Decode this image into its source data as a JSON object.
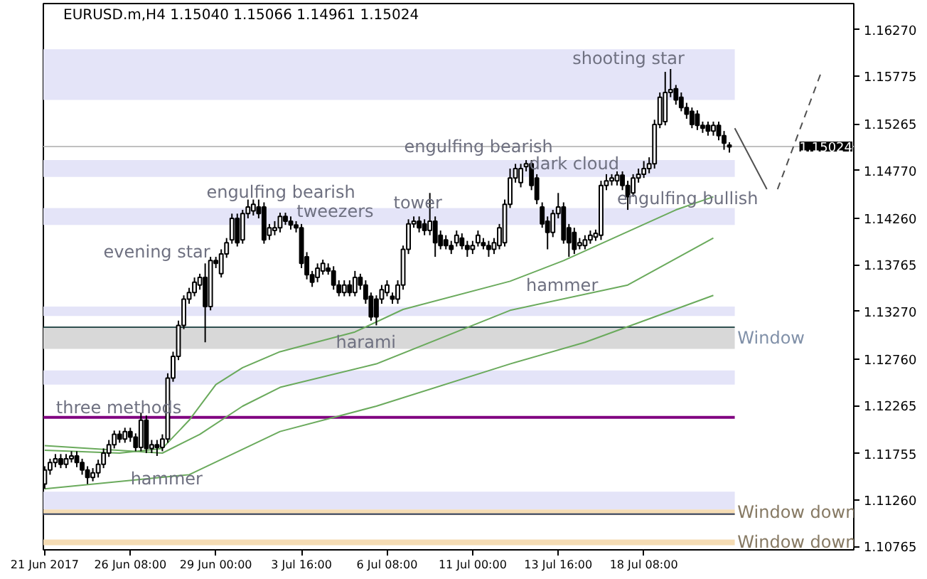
{
  "chart_data": {
    "type": "candlestick",
    "title": "EURUSD.m,H4  1.15040 1.15066 1.14961 1.15024",
    "categories": [
      "21 Jun 2017",
      null,
      null,
      null,
      null,
      null,
      null,
      null,
      null,
      null,
      null,
      null,
      null,
      null,
      null,
      null,
      "26 Jun 08:00",
      null,
      null,
      null,
      null,
      null,
      null,
      null,
      null,
      null,
      null,
      null,
      null,
      null,
      null,
      null,
      "29 Jun 00:00",
      null,
      null,
      null,
      null,
      null,
      null,
      null,
      null,
      null,
      null,
      null,
      null,
      null,
      null,
      null,
      "3 Jul 16:00",
      null,
      null,
      null,
      null,
      null,
      null,
      null,
      null,
      null,
      null,
      null,
      null,
      null,
      null,
      null,
      "6 Jul 08:00",
      null,
      null,
      null,
      null,
      null,
      null,
      null,
      null,
      null,
      null,
      null,
      null,
      null,
      null,
      null,
      "11 Jul 00:00",
      null,
      null,
      null,
      null,
      null,
      null,
      null,
      null,
      null,
      null,
      null,
      null,
      null,
      null,
      null,
      "13 Jul 16:00",
      null,
      null,
      null,
      null,
      null,
      null,
      null,
      null,
      null,
      null,
      null,
      null,
      null,
      null,
      null,
      "18 Jul 08:00",
      null,
      null,
      null,
      null,
      null,
      null,
      null,
      null,
      null,
      null,
      null,
      null,
      null,
      null,
      null,
      null,
      null,
      null,
      null,
      null,
      null,
      null,
      null,
      null,
      null,
      null,
      null,
      null,
      null,
      null,
      null,
      null,
      null,
      null,
      null,
      null,
      null,
      null,
      null
    ],
    "ohlc": [
      [
        1.1143,
        1.1162,
        1.1138,
        1.1158
      ],
      [
        1.1158,
        1.117,
        1.1153,
        1.1166
      ],
      [
        1.1166,
        1.1175,
        1.1161,
        1.117
      ],
      [
        1.117,
        1.1175,
        1.116,
        1.1164
      ],
      [
        1.1164,
        1.1175,
        1.116,
        1.117
      ],
      [
        1.117,
        1.1178,
        1.1166,
        1.1173
      ],
      [
        1.1173,
        1.1178,
        1.1161,
        1.1166
      ],
      [
        1.1166,
        1.117,
        1.1153,
        1.1158
      ],
      [
        1.1158,
        1.1162,
        1.1143,
        1.115
      ],
      [
        1.115,
        1.116,
        1.1146,
        1.1155
      ],
      [
        1.1155,
        1.1169,
        1.115,
        1.1164
      ],
      [
        1.1164,
        1.1181,
        1.116,
        1.1176
      ],
      [
        1.1176,
        1.119,
        1.1172,
        1.1185
      ],
      [
        1.1185,
        1.12,
        1.1181,
        1.1196
      ],
      [
        1.1196,
        1.12,
        1.1187,
        1.1191
      ],
      [
        1.1191,
        1.1203,
        1.1187,
        1.1199
      ],
      [
        1.1199,
        1.1203,
        1.1188,
        1.1193
      ],
      [
        1.1193,
        1.1197,
        1.1178,
        1.1182
      ],
      [
        1.1182,
        1.1219,
        1.1178,
        1.1211
      ],
      [
        1.1211,
        1.1216,
        1.1176,
        1.1181
      ],
      [
        1.1181,
        1.119,
        1.1176,
        1.1185
      ],
      [
        1.1185,
        1.119,
        1.1173,
        1.1182
      ],
      [
        1.1182,
        1.1196,
        1.1178,
        1.1191
      ],
      [
        1.1191,
        1.1261,
        1.1187,
        1.1256
      ],
      [
        1.1256,
        1.1284,
        1.1252,
        1.1279
      ],
      [
        1.1279,
        1.1317,
        1.1275,
        1.1312
      ],
      [
        1.1312,
        1.1344,
        1.1308,
        1.134
      ],
      [
        1.134,
        1.1352,
        1.1335,
        1.1347
      ],
      [
        1.1347,
        1.1363,
        1.1343,
        1.1358
      ],
      [
        1.1355,
        1.1367,
        1.135,
        1.1363
      ],
      [
        1.1363,
        1.1378,
        1.1294,
        1.1332
      ],
      [
        1.1332,
        1.1385,
        1.1328,
        1.1381
      ],
      [
        1.1381,
        1.1385,
        1.1373,
        1.1378
      ],
      [
        1.1367,
        1.1393,
        1.1363,
        1.1388
      ],
      [
        1.1388,
        1.1405,
        1.1384,
        1.14
      ],
      [
        1.1403,
        1.1431,
        1.1399,
        1.1426
      ],
      [
        1.1426,
        1.1431,
        1.1396,
        1.14
      ],
      [
        1.1403,
        1.1435,
        1.1399,
        1.1431
      ],
      [
        1.1431,
        1.1446,
        1.1426,
        1.1438
      ],
      [
        1.1434,
        1.1446,
        1.1429,
        1.1441
      ],
      [
        1.1438,
        1.1446,
        1.1426,
        1.1431
      ],
      [
        1.1438,
        1.1443,
        1.1399,
        1.1403
      ],
      [
        1.1408,
        1.142,
        1.1403,
        1.1416
      ],
      [
        1.1413,
        1.1423,
        1.1408,
        1.1416
      ],
      [
        1.1416,
        1.1432,
        1.1411,
        1.1428
      ],
      [
        1.1428,
        1.1432,
        1.1419,
        1.1423
      ],
      [
        1.1423,
        1.1428,
        1.1414,
        1.1419
      ],
      [
        1.1419,
        1.1423,
        1.1411,
        1.1416
      ],
      [
        1.1416,
        1.142,
        1.1373,
        1.1378
      ],
      [
        1.1385,
        1.139,
        1.1361,
        1.1366
      ],
      [
        1.1366,
        1.137,
        1.1353,
        1.1358
      ],
      [
        1.1363,
        1.1378,
        1.1358,
        1.1373
      ],
      [
        1.137,
        1.1382,
        1.1366,
        1.1378
      ],
      [
        1.1373,
        1.1378,
        1.1366,
        1.137
      ],
      [
        1.137,
        1.1375,
        1.135,
        1.1355
      ],
      [
        1.1355,
        1.136,
        1.1343,
        1.1347
      ],
      [
        1.1347,
        1.136,
        1.1343,
        1.1355
      ],
      [
        1.1355,
        1.136,
        1.1343,
        1.1347
      ],
      [
        1.1347,
        1.137,
        1.1343,
        1.1363
      ],
      [
        1.1363,
        1.1367,
        1.135,
        1.1355
      ],
      [
        1.1355,
        1.136,
        1.1335,
        1.134
      ],
      [
        1.1343,
        1.1347,
        1.1317,
        1.1321
      ],
      [
        1.134,
        1.1344,
        1.1312,
        1.1321
      ],
      [
        1.134,
        1.1355,
        1.1335,
        1.135
      ],
      [
        1.1347,
        1.136,
        1.1343,
        1.1355
      ],
      [
        1.1343,
        1.1347,
        1.1335,
        1.134
      ],
      [
        1.134,
        1.136,
        1.1335,
        1.1355
      ],
      [
        1.1355,
        1.1397,
        1.135,
        1.1393
      ],
      [
        1.1393,
        1.1425,
        1.1388,
        1.142
      ],
      [
        1.142,
        1.1428,
        1.1416,
        1.1423
      ],
      [
        1.1423,
        1.1428,
        1.1411,
        1.1416
      ],
      [
        1.142,
        1.1425,
        1.1408,
        1.1413
      ],
      [
        1.1413,
        1.1453,
        1.1408,
        1.1423
      ],
      [
        1.1423,
        1.1428,
        1.1385,
        1.14
      ],
      [
        1.1408,
        1.1413,
        1.1393,
        1.1397
      ],
      [
        1.1403,
        1.1408,
        1.1393,
        1.1397
      ],
      [
        1.1397,
        1.1402,
        1.1388,
        1.1393
      ],
      [
        1.14,
        1.1413,
        1.1396,
        1.1408
      ],
      [
        1.1405,
        1.141,
        1.1393,
        1.1397
      ],
      [
        1.1397,
        1.1402,
        1.1385,
        1.1393
      ],
      [
        1.1393,
        1.1402,
        1.1388,
        1.1397
      ],
      [
        1.14,
        1.1413,
        1.1396,
        1.1408
      ],
      [
        1.14,
        1.1405,
        1.1393,
        1.1397
      ],
      [
        1.1397,
        1.1402,
        1.1385,
        1.1393
      ],
      [
        1.1393,
        1.1405,
        1.1388,
        1.14
      ],
      [
        1.1397,
        1.142,
        1.1393,
        1.1416
      ],
      [
        1.14,
        1.1446,
        1.1396,
        1.1441
      ],
      [
        1.1441,
        1.1479,
        1.1437,
        1.1469
      ],
      [
        1.1469,
        1.1484,
        1.1464,
        1.1479
      ],
      [
        1.1464,
        1.1484,
        1.1459,
        1.1479
      ],
      [
        1.1481,
        1.1488,
        1.1476,
        1.1484
      ],
      [
        1.1484,
        1.1488,
        1.1456,
        1.1461
      ],
      [
        1.1469,
        1.1473,
        1.1441,
        1.1446
      ],
      [
        1.1438,
        1.1443,
        1.1416,
        1.142
      ],
      [
        1.1423,
        1.1428,
        1.1393,
        1.1411
      ],
      [
        1.1411,
        1.1435,
        1.1406,
        1.1431
      ],
      [
        1.1431,
        1.1453,
        1.1426,
        1.1438
      ],
      [
        1.1438,
        1.1443,
        1.1399,
        1.1403
      ],
      [
        1.1416,
        1.142,
        1.1385,
        1.14
      ],
      [
        1.1411,
        1.1416,
        1.1388,
        1.1393
      ],
      [
        1.1397,
        1.1405,
        1.1393,
        1.14
      ],
      [
        1.1397,
        1.1408,
        1.1393,
        1.1403
      ],
      [
        1.1403,
        1.1413,
        1.1399,
        1.1408
      ],
      [
        1.1406,
        1.1414,
        1.1402,
        1.141
      ],
      [
        1.1408,
        1.1466,
        1.1403,
        1.1461
      ],
      [
        1.1461,
        1.1473,
        1.1456,
        1.1466
      ],
      [
        1.1466,
        1.1473,
        1.1461,
        1.1469
      ],
      [
        1.1466,
        1.1476,
        1.1461,
        1.1472
      ],
      [
        1.1472,
        1.1476,
        1.1456,
        1.1461
      ],
      [
        1.1461,
        1.1466,
        1.1435,
        1.1449
      ],
      [
        1.1453,
        1.1473,
        1.1449,
        1.1469
      ],
      [
        1.1469,
        1.1479,
        1.1464,
        1.1473
      ],
      [
        1.1473,
        1.1487,
        1.1469,
        1.1479
      ],
      [
        1.1479,
        1.1491,
        1.1474,
        1.1484
      ],
      [
        1.1484,
        1.1531,
        1.1479,
        1.1526
      ],
      [
        1.1526,
        1.156,
        1.1522,
        1.1555
      ],
      [
        1.1529,
        1.1582,
        1.1525,
        1.156
      ],
      [
        1.156,
        1.1585,
        1.1555,
        1.1563
      ],
      [
        1.1564,
        1.1568,
        1.1547,
        1.1552
      ],
      [
        1.1555,
        1.156,
        1.154,
        1.1544
      ],
      [
        1.1544,
        1.1549,
        1.1532,
        1.1537
      ],
      [
        1.154,
        1.1544,
        1.1522,
        1.1526
      ],
      [
        1.1537,
        1.1541,
        1.152,
        1.1525
      ],
      [
        1.1525,
        1.1529,
        1.1517,
        1.1522
      ],
      [
        1.1525,
        1.1529,
        1.1514,
        1.1519
      ],
      [
        1.1519,
        1.1529,
        1.1514,
        1.1525
      ],
      [
        1.1525,
        1.1529,
        1.1509,
        1.1514
      ],
      [
        1.1514,
        1.1519,
        1.1499,
        1.1506
      ],
      [
        1.1504,
        1.1507,
        1.1496,
        1.1502
      ],
      null,
      null,
      null,
      null,
      null,
      null,
      null,
      null,
      null,
      null,
      null,
      null,
      null,
      null,
      null,
      null,
      null,
      null,
      null,
      null,
      null,
      null,
      null
    ],
    "series": [
      {
        "type": "line",
        "color": "#6aaa5c",
        "values": [
          1.1179,
          null,
          null,
          null,
          null,
          null,
          null,
          null,
          null,
          null,
          null,
          null,
          null,
          null,
          1.1176,
          null,
          null,
          null,
          null,
          null,
          null,
          null,
          1.1181,
          null,
          null,
          null,
          null,
          1.1211,
          null,
          null,
          null,
          null,
          1.1249,
          null,
          null,
          null,
          null,
          1.1267,
          null,
          null,
          null,
          null,
          null,
          null,
          1.1284,
          null,
          null,
          null,
          null,
          null,
          null,
          null,
          null,
          null,
          null,
          null,
          null,
          null,
          1.1305,
          null,
          null,
          null,
          null,
          null,
          null,
          null,
          null,
          1.1329,
          null,
          null,
          null,
          null,
          null,
          null,
          null,
          null,
          null,
          null,
          null,
          null,
          null,
          null,
          null,
          null,
          null,
          null,
          null,
          1.1359,
          null,
          null,
          null,
          null,
          null,
          null,
          null,
          null,
          null,
          1.1381,
          null,
          null,
          null,
          null,
          null,
          null,
          null,
          null,
          null,
          null,
          null,
          null,
          null,
          null,
          null,
          null,
          null,
          null,
          null,
          null,
          1.1435,
          null,
          null,
          null,
          null,
          null,
          null,
          1.1449,
          null,
          null,
          null,
          null,
          null,
          null,
          null,
          null,
          null,
          null,
          null,
          null,
          null,
          null,
          null,
          null,
          null,
          null,
          null,
          null,
          null,
          null,
          null,
          null,
          null,
          null
        ]
      },
      {
        "type": "line",
        "color": "#6aaa5c",
        "values": [
          1.1184,
          null,
          null,
          null,
          null,
          null,
          null,
          null,
          null,
          null,
          null,
          null,
          null,
          null,
          null,
          null,
          null,
          null,
          null,
          null,
          null,
          null,
          1.1176,
          null,
          null,
          null,
          null,
          null,
          null,
          1.1196,
          null,
          null,
          null,
          null,
          null,
          null,
          null,
          1.1226,
          null,
          null,
          null,
          null,
          null,
          null,
          1.1246,
          null,
          null,
          null,
          null,
          null,
          null,
          null,
          null,
          null,
          null,
          null,
          null,
          null,
          null,
          null,
          null,
          null,
          1.1271,
          null,
          null,
          null,
          null,
          null,
          null,
          null,
          null,
          null,
          null,
          null,
          null,
          null,
          null,
          null,
          null,
          null,
          null,
          null,
          null,
          null,
          null,
          null,
          null,
          1.1328,
          null,
          null,
          null,
          null,
          null,
          null,
          null,
          null,
          null,
          null,
          null,
          null,
          null,
          null,
          null,
          null,
          null,
          null,
          null,
          null,
          null,
          1.1355,
          null,
          null,
          null,
          null,
          null,
          null,
          null,
          null,
          null,
          null,
          null,
          null,
          null,
          null,
          null,
          1.1405,
          null,
          null,
          null,
          null,
          null,
          null,
          null,
          null,
          null,
          null,
          null,
          null,
          null,
          null,
          null,
          null,
          null,
          null,
          null,
          null,
          null,
          null,
          null,
          null,
          null,
          null
        ]
      },
      {
        "type": "line",
        "color": "#6aaa5c",
        "values": [
          1.1138,
          null,
          null,
          null,
          null,
          null,
          null,
          null,
          null,
          null,
          null,
          null,
          null,
          null,
          null,
          null,
          null,
          null,
          null,
          null,
          null,
          null,
          null,
          null,
          null,
          null,
          null,
          1.1153,
          null,
          null,
          null,
          null,
          null,
          null,
          null,
          null,
          null,
          null,
          null,
          null,
          null,
          null,
          null,
          null,
          1.1199,
          null,
          null,
          null,
          null,
          null,
          null,
          null,
          null,
          null,
          null,
          null,
          null,
          null,
          null,
          null,
          null,
          null,
          1.1226,
          null,
          null,
          null,
          null,
          null,
          null,
          null,
          null,
          null,
          null,
          null,
          null,
          null,
          null,
          null,
          null,
          null,
          null,
          null,
          null,
          null,
          null,
          null,
          null,
          1.1271,
          null,
          null,
          null,
          null,
          null,
          null,
          null,
          null,
          null,
          null,
          null,
          null,
          null,
          1.1294,
          null,
          null,
          null,
          null,
          null,
          null,
          null,
          null,
          null,
          null,
          null,
          null,
          null,
          null,
          null,
          null,
          null,
          null,
          null,
          null,
          null,
          null,
          null,
          1.1344,
          null,
          null,
          null,
          null,
          null,
          null,
          null,
          null,
          null,
          null,
          null,
          null,
          null,
          null,
          null,
          null,
          null,
          null,
          null,
          null,
          null,
          null,
          null,
          null,
          null,
          null
        ]
      },
      {
        "type": "line",
        "color": "#505050",
        "line_style": "solid",
        "values": [
          null,
          null,
          null,
          null,
          null,
          null,
          null,
          null,
          null,
          null,
          null,
          null,
          null,
          null,
          null,
          null,
          null,
          null,
          null,
          null,
          null,
          null,
          null,
          null,
          null,
          null,
          null,
          null,
          null,
          null,
          null,
          null,
          null,
          null,
          null,
          null,
          null,
          null,
          null,
          null,
          null,
          null,
          null,
          null,
          null,
          null,
          null,
          null,
          null,
          null,
          null,
          null,
          null,
          null,
          null,
          null,
          null,
          null,
          null,
          null,
          null,
          null,
          null,
          null,
          null,
          null,
          null,
          null,
          null,
          null,
          null,
          null,
          null,
          null,
          null,
          null,
          null,
          null,
          null,
          null,
          null,
          null,
          null,
          null,
          null,
          null,
          null,
          null,
          null,
          null,
          null,
          null,
          null,
          null,
          null,
          null,
          null,
          null,
          null,
          null,
          null,
          null,
          null,
          null,
          null,
          null,
          null,
          null,
          null,
          null,
          null,
          null,
          null,
          null,
          null,
          null,
          null,
          null,
          null,
          null,
          null,
          null,
          null,
          null,
          null,
          null,
          null,
          null,
          null,
          1.1522,
          null,
          null,
          null,
          null,
          null,
          1.1457,
          null,
          null,
          null,
          null,
          null,
          null,
          null,
          null,
          null,
          null,
          null,
          null,
          null,
          null,
          null,
          null
        ]
      },
      {
        "type": "line",
        "color": "#505050",
        "line_style": "dashed",
        "values": [
          null,
          null,
          null,
          null,
          null,
          null,
          null,
          null,
          null,
          null,
          null,
          null,
          null,
          null,
          null,
          null,
          null,
          null,
          null,
          null,
          null,
          null,
          null,
          null,
          null,
          null,
          null,
          null,
          null,
          null,
          null,
          null,
          null,
          null,
          null,
          null,
          null,
          null,
          null,
          null,
          null,
          null,
          null,
          null,
          null,
          null,
          null,
          null,
          null,
          null,
          null,
          null,
          null,
          null,
          null,
          null,
          null,
          null,
          null,
          null,
          null,
          null,
          null,
          null,
          null,
          null,
          null,
          null,
          null,
          null,
          null,
          null,
          null,
          null,
          null,
          null,
          null,
          null,
          null,
          null,
          null,
          null,
          null,
          null,
          null,
          null,
          null,
          null,
          null,
          null,
          null,
          null,
          null,
          null,
          null,
          null,
          null,
          null,
          null,
          null,
          null,
          null,
          null,
          null,
          null,
          null,
          null,
          null,
          null,
          null,
          null,
          null,
          null,
          null,
          null,
          null,
          null,
          null,
          null,
          null,
          null,
          null,
          null,
          null,
          null,
          null,
          null,
          null,
          null,
          null,
          null,
          null,
          null,
          null,
          null,
          null,
          null,
          1.1457,
          null,
          null,
          null,
          null,
          null,
          null,
          null,
          1.1579,
          null,
          null,
          null,
          null,
          null,
          null
        ]
      }
    ],
    "ylim": [
      1.1073,
      1.16547
    ],
    "yticks": [
      {
        "value": 1.1627,
        "label": "1.16270"
      },
      {
        "value": 1.15775,
        "label": "1.15775"
      },
      {
        "value": 1.15265,
        "label": "1.15265"
      },
      {
        "value": 1.1477,
        "label": "1.14770"
      },
      {
        "value": 1.1426,
        "label": "1.14260"
      },
      {
        "value": 1.13765,
        "label": "1.13765"
      },
      {
        "value": 1.1327,
        "label": "1.13270"
      },
      {
        "value": 1.1276,
        "label": "1.12760"
      },
      {
        "value": 1.12265,
        "label": "1.12265"
      },
      {
        "value": 1.11755,
        "label": "1.11755"
      },
      {
        "value": 1.1126,
        "label": "1.11260"
      },
      {
        "value": 1.10765,
        "label": "1.10765"
      }
    ],
    "bands": [
      {
        "axis": "y",
        "from": 1.1552,
        "to": 1.1606,
        "color": "#e4e4f8"
      },
      {
        "axis": "y",
        "from": 1.147,
        "to": 1.1488,
        "color": "#e4e4f8"
      },
      {
        "axis": "y",
        "from": 1.1419,
        "to": 1.1437,
        "color": "#e4e4f8"
      },
      {
        "axis": "y",
        "from": 1.1322,
        "to": 1.1332,
        "color": "#e4e4f8"
      },
      {
        "axis": "y",
        "from": 1.1287,
        "to": 1.131,
        "color": "#d8d8d8",
        "label": "Window"
      },
      {
        "axis": "y",
        "from": 1.1249,
        "to": 1.1264,
        "color": "#e4e4f8"
      },
      {
        "axis": "y",
        "from": 1.1116,
        "to": 1.1135,
        "color": "#e4e4f8"
      },
      {
        "axis": "y",
        "from": 1.111,
        "to": 1.1116,
        "color": "#f5dcb4",
        "label": "Window down"
      },
      {
        "axis": "y",
        "from": 1.1078,
        "to": 1.1084,
        "color": "#f5dcb4",
        "label": "Window down"
      }
    ],
    "ref_lines": [
      {
        "axis": "y",
        "value": 1.15024,
        "label": "1.15024",
        "color": "#c0c0c0"
      },
      {
        "axis": "y",
        "value": 1.131,
        "color": "#2f4f4f"
      },
      {
        "axis": "y",
        "value": 1.1214,
        "color": "#800080"
      },
      {
        "axis": "y",
        "value": 1.1111,
        "color": "#2f3f5f"
      }
    ],
    "annotations": [
      "three methods",
      "hammer",
      "evening star",
      "engulfing bearish",
      "tweezers",
      "harami",
      "tower",
      "engulfing bearish",
      "dark cloud",
      "hammer",
      "engulfing bullish",
      "shooting star"
    ]
  }
}
